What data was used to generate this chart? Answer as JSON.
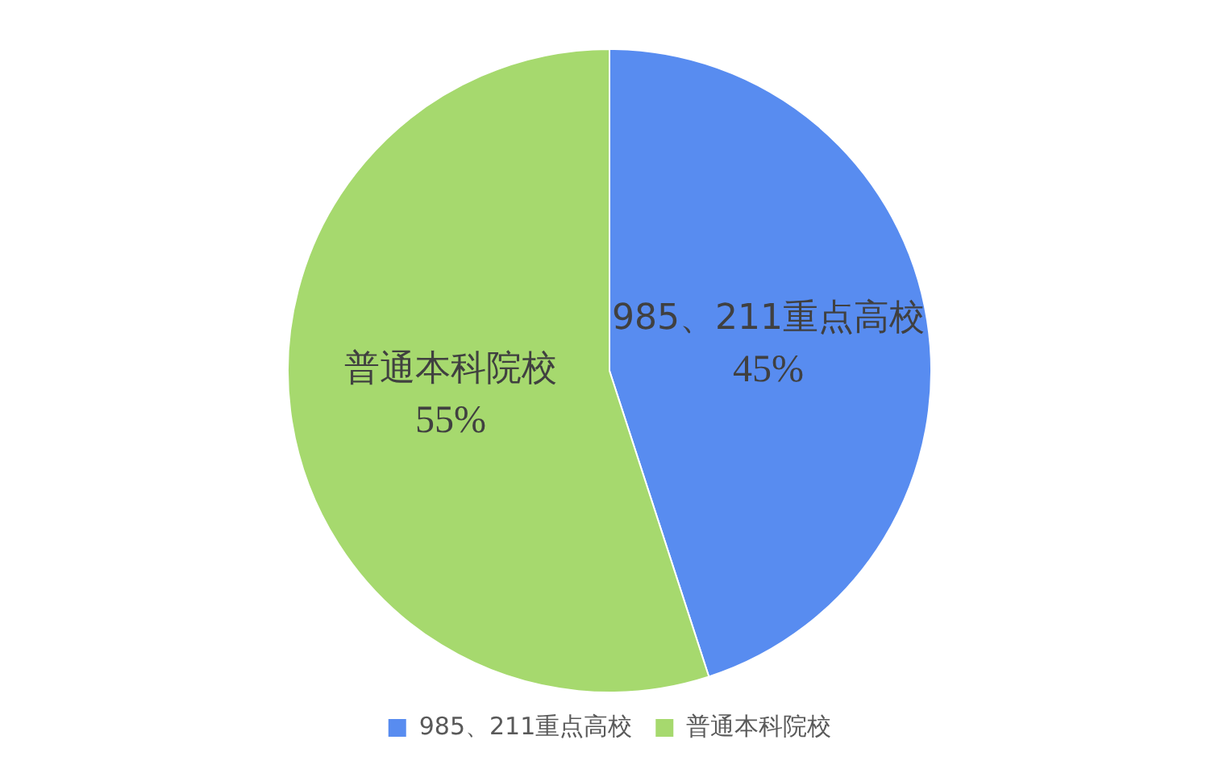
{
  "chart_data": {
    "type": "pie",
    "categories": [
      "985、211重点高校",
      "普通本科院校"
    ],
    "values": [
      45,
      55
    ],
    "colors": [
      "#588cf0",
      "#a6d96e"
    ],
    "value_labels": [
      "45%",
      "55%"
    ],
    "legend": "bottom"
  }
}
